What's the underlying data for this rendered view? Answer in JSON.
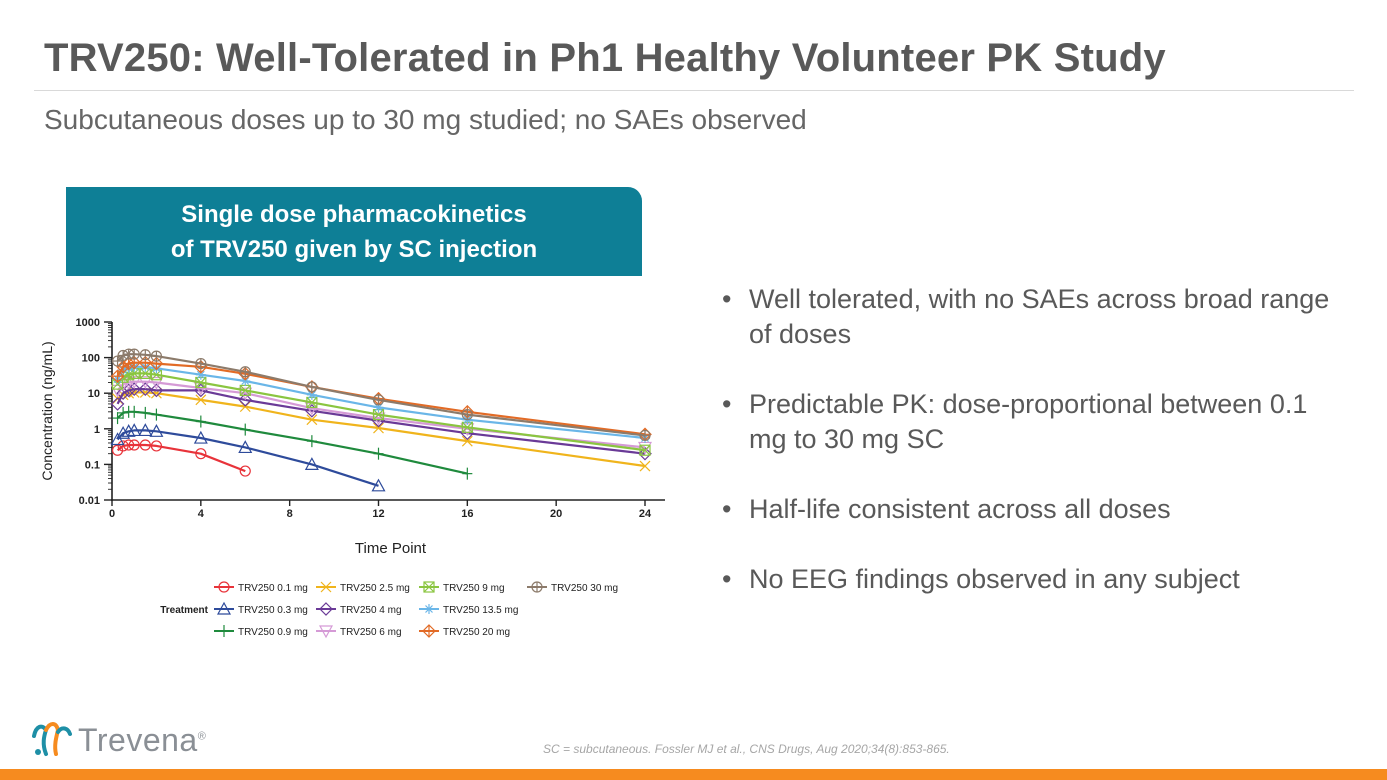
{
  "header": {
    "title": "TRV250: Well-Tolerated in Ph1 Healthy Volunteer PK Study",
    "subtitle": "Subcutaneous doses up to 30 mg studied; no SAEs observed"
  },
  "chart_header": {
    "line1": "Single dose pharmacokinetics",
    "line2": "of TRV250 given by SC injection"
  },
  "chart_data": {
    "type": "line",
    "title": "",
    "xlabel": "Time Point",
    "ylabel": "Concentration (ng/mL)",
    "yscale": "log",
    "xlim": [
      0,
      24
    ],
    "ylim": [
      0.01,
      1000
    ],
    "xticks": [
      0,
      4,
      8,
      12,
      16,
      20,
      24
    ],
    "yticks": [
      0.01,
      0.1,
      1,
      10,
      100,
      1000
    ],
    "ytick_labels": [
      "0.01",
      "0.1",
      "1",
      "10",
      "100",
      "1000"
    ],
    "legend_title": "Treatment",
    "legend_position": "bottom",
    "grid": false,
    "series": [
      {
        "name": "TRV250 0.1 mg",
        "color": "#e8333a",
        "marker": "circle",
        "x": [
          0.25,
          0.5,
          0.75,
          1,
          1.5,
          2,
          4,
          6
        ],
        "y": [
          0.25,
          0.33,
          0.35,
          0.35,
          0.35,
          0.33,
          0.2,
          0.065
        ]
      },
      {
        "name": "TRV250 0.3 mg",
        "color": "#2e4b9b",
        "marker": "triangle",
        "x": [
          0.25,
          0.5,
          0.75,
          1,
          1.5,
          2,
          4,
          6,
          9,
          12
        ],
        "y": [
          0.5,
          0.75,
          0.85,
          0.9,
          0.9,
          0.85,
          0.55,
          0.3,
          0.1,
          0.025
        ]
      },
      {
        "name": "TRV250 0.9 mg",
        "color": "#1f8a3d",
        "marker": "plus",
        "x": [
          0.25,
          0.5,
          0.75,
          1,
          1.5,
          2,
          4,
          6,
          9,
          12,
          16
        ],
        "y": [
          2,
          2.8,
          3.0,
          3.0,
          2.8,
          2.5,
          1.6,
          0.95,
          0.45,
          0.2,
          0.055
        ]
      },
      {
        "name": "TRV250 2.5 mg",
        "color": "#f0b41c",
        "marker": "x",
        "x": [
          0.25,
          0.5,
          0.75,
          1,
          1.5,
          2,
          4,
          6,
          9,
          12,
          16,
          24
        ],
        "y": [
          7,
          9,
          10,
          10.5,
          10.5,
          10,
          6.5,
          4.2,
          1.8,
          1.05,
          0.45,
          0.09
        ]
      },
      {
        "name": "TRV250 4 mg",
        "color": "#6a3a97",
        "marker": "diamond",
        "x": [
          0.25,
          0.5,
          0.75,
          1,
          1.5,
          2,
          4,
          6,
          9,
          12,
          16,
          24
        ],
        "y": [
          5,
          10,
          12,
          13,
          13,
          12,
          12,
          6.5,
          3.2,
          1.7,
          0.75,
          0.2
        ]
      },
      {
        "name": "TRV250 6 mg",
        "color": "#d59ad6",
        "marker": "triangle-down",
        "x": [
          0.25,
          0.5,
          0.75,
          1,
          1.5,
          2,
          4,
          6,
          9,
          12,
          16,
          24
        ],
        "y": [
          12,
          18,
          20,
          21,
          21,
          20,
          14,
          10,
          3.8,
          2.0,
          1.0,
          0.3
        ]
      },
      {
        "name": "TRV250 9 mg",
        "color": "#8ac540",
        "marker": "x-box",
        "x": [
          0.25,
          0.5,
          0.75,
          1,
          1.5,
          2,
          4,
          6,
          9,
          12,
          16,
          24
        ],
        "y": [
          18,
          28,
          33,
          36,
          36,
          33,
          20,
          12,
          5.5,
          2.5,
          1.1,
          0.25
        ]
      },
      {
        "name": "TRV250 13.5 mg",
        "color": "#6ab6e8",
        "marker": "asterisk",
        "x": [
          0.25,
          0.5,
          0.75,
          1,
          1.5,
          2,
          4,
          6,
          9,
          12,
          16,
          24
        ],
        "y": [
          25,
          45,
          52,
          55,
          55,
          50,
          33,
          22,
          9,
          4,
          1.8,
          0.55
        ]
      },
      {
        "name": "TRV250 20 mg",
        "color": "#e26b26",
        "marker": "diamond-plus",
        "x": [
          0.25,
          0.5,
          0.75,
          1,
          1.5,
          2,
          4,
          6,
          9,
          12,
          16,
          24
        ],
        "y": [
          30,
          55,
          68,
          72,
          72,
          68,
          55,
          35,
          15,
          7,
          3,
          0.7
        ]
      },
      {
        "name": "TRV250 30 mg",
        "color": "#8c7b6b",
        "marker": "circle-plus",
        "x": [
          0.25,
          0.5,
          0.75,
          1,
          1.5,
          2,
          4,
          6,
          9,
          12,
          16,
          24
        ],
        "y": [
          80,
          115,
          125,
          125,
          120,
          110,
          68,
          40,
          15,
          6.5,
          2.5,
          0.65
        ]
      }
    ]
  },
  "bullets": [
    "Well tolerated, with no SAEs across broad range of doses",
    "Predictable PK: dose-proportional between 0.1 mg to 30 mg SC",
    "Half-life consistent across all doses",
    "No EEG findings observed in any subject"
  ],
  "footnote": "SC = subcutaneous. Fossler MJ et al., CNS Drugs, Aug 2020;34(8):853-865.",
  "logo": {
    "text": "Trevena",
    "registered": "®",
    "colors": [
      "#1e8fa6",
      "#f68b1f"
    ]
  },
  "accent_bar_color": "#f68b1f"
}
